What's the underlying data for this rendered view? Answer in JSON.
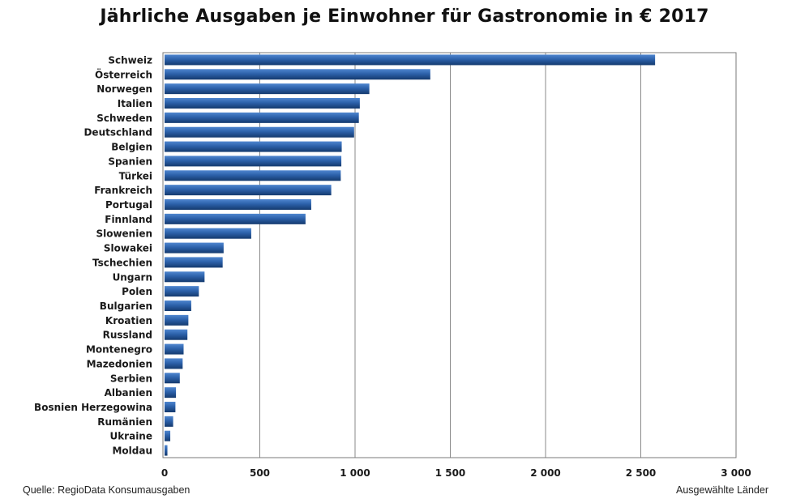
{
  "chart_data": {
    "type": "bar",
    "orientation": "horizontal",
    "title": "Jährliche Ausgaben je Einwohner für Gastronomie in € 2017",
    "categories": [
      "Schweiz",
      "Österreich",
      "Norwegen",
      "Italien",
      "Schweden",
      "Deutschland",
      "Belgien",
      "Spanien",
      "Türkei",
      "Frankreich",
      "Portugal",
      "Finnland",
      "Slowenien",
      "Slowakei",
      "Tschechien",
      "Ungarn",
      "Polen",
      "Bulgarien",
      "Kroatien",
      "Russland",
      "Montenegro",
      "Mazedonien",
      "Serbien",
      "Albanien",
      "Bosnien Herzegowina",
      "Rumänien",
      "Ukraine",
      "Moldau"
    ],
    "values": [
      2575,
      1395,
      1075,
      1025,
      1020,
      995,
      930,
      928,
      925,
      875,
      770,
      740,
      455,
      310,
      305,
      210,
      180,
      140,
      125,
      120,
      100,
      95,
      80,
      60,
      57,
      45,
      30,
      15
    ],
    "xlim": [
      0,
      3000
    ],
    "xticks": [
      0,
      500,
      1000,
      1500,
      2000,
      2500,
      3000
    ],
    "xtick_labels": [
      "0",
      "500",
      "1 000",
      "1 500",
      "2 000",
      "2 500",
      "3 000"
    ],
    "grid": true,
    "legend": "none",
    "colors": {
      "bar_dark": "#143a6e",
      "bar_mid": "#2c61aa",
      "bar_light": "#4f86cf"
    }
  },
  "footer": {
    "source": "Quelle: RegioData Konsumausgaben",
    "note": "Ausgewählte Länder"
  }
}
